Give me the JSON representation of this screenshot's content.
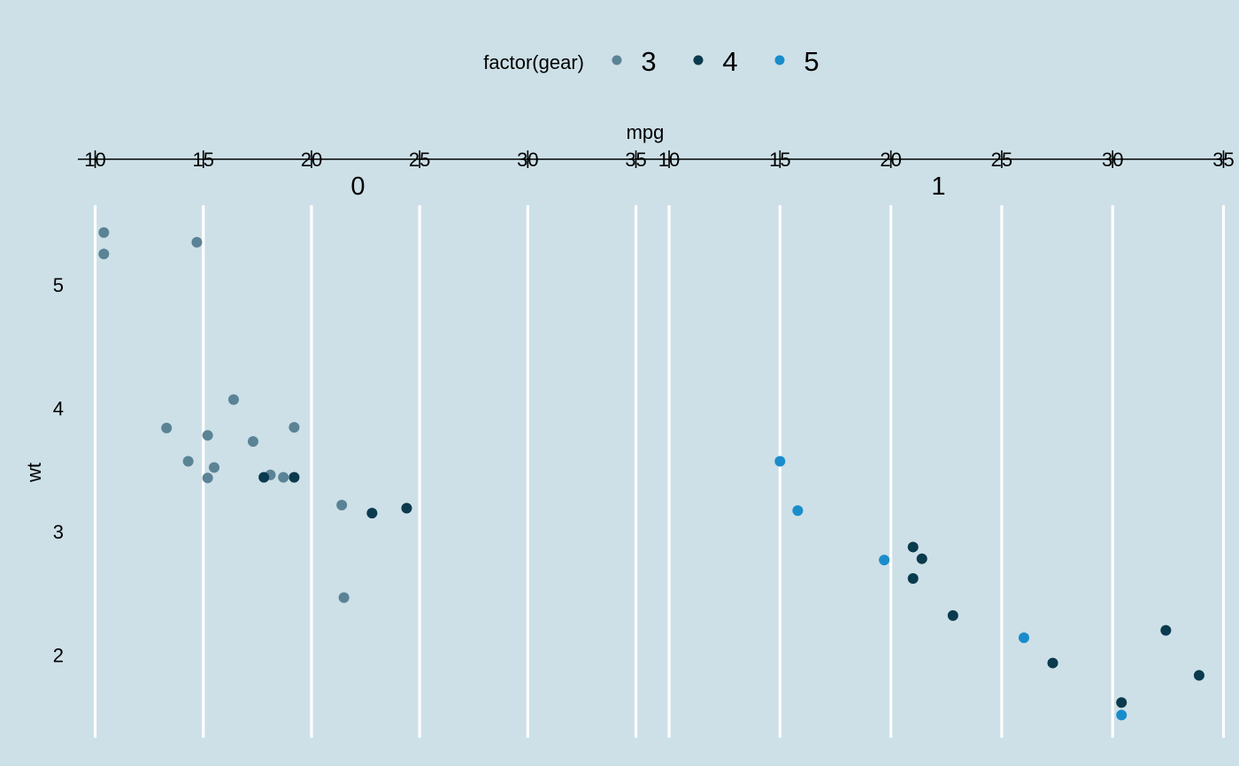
{
  "chart_data": {
    "type": "scatter",
    "xlabel": "mpg",
    "ylabel": "wt",
    "xlim": [
      9.2,
      35.1
    ],
    "ylim": [
      1.4,
      5.54
    ],
    "x_ticks": [
      10,
      15,
      20,
      25,
      30,
      35
    ],
    "y_ticks": [
      2,
      3,
      4,
      5
    ],
    "grid": "vertical-major-only",
    "legend": {
      "title": "factor(gear)",
      "placement": "top",
      "entries": [
        {
          "label": "3",
          "color": "#5b8396"
        },
        {
          "label": "4",
          "color": "#0a3a4d"
        },
        {
          "label": "5",
          "color": "#1a8ccc"
        }
      ]
    },
    "facets": [
      {
        "label": "0",
        "points": [
          {
            "x": 10.4,
            "y": 5.25,
            "gear": "3"
          },
          {
            "x": 10.4,
            "y": 5.424,
            "gear": "3"
          },
          {
            "x": 14.7,
            "y": 5.345,
            "gear": "3"
          },
          {
            "x": 13.3,
            "y": 3.84,
            "gear": "3"
          },
          {
            "x": 14.3,
            "y": 3.57,
            "gear": "3"
          },
          {
            "x": 15.2,
            "y": 3.78,
            "gear": "3"
          },
          {
            "x": 15.2,
            "y": 3.435,
            "gear": "3"
          },
          {
            "x": 15.5,
            "y": 3.52,
            "gear": "3"
          },
          {
            "x": 16.4,
            "y": 4.07,
            "gear": "3"
          },
          {
            "x": 17.3,
            "y": 3.73,
            "gear": "3"
          },
          {
            "x": 18.1,
            "y": 3.46,
            "gear": "3"
          },
          {
            "x": 18.7,
            "y": 3.44,
            "gear": "3"
          },
          {
            "x": 19.2,
            "y": 3.845,
            "gear": "3"
          },
          {
            "x": 21.4,
            "y": 3.215,
            "gear": "3"
          },
          {
            "x": 21.5,
            "y": 2.465,
            "gear": "3"
          },
          {
            "x": 17.8,
            "y": 3.44,
            "gear": "4"
          },
          {
            "x": 19.2,
            "y": 3.44,
            "gear": "4"
          },
          {
            "x": 22.8,
            "y": 3.15,
            "gear": "4"
          },
          {
            "x": 24.4,
            "y": 3.19,
            "gear": "4"
          }
        ]
      },
      {
        "label": "1",
        "points": [
          {
            "x": 15.0,
            "y": 3.57,
            "gear": "5"
          },
          {
            "x": 15.8,
            "y": 3.17,
            "gear": "5"
          },
          {
            "x": 19.7,
            "y": 2.77,
            "gear": "5"
          },
          {
            "x": 26.0,
            "y": 2.14,
            "gear": "5"
          },
          {
            "x": 30.4,
            "y": 1.513,
            "gear": "5"
          },
          {
            "x": 21.0,
            "y": 2.875,
            "gear": "4"
          },
          {
            "x": 21.4,
            "y": 2.78,
            "gear": "4"
          },
          {
            "x": 21.0,
            "y": 2.62,
            "gear": "4"
          },
          {
            "x": 22.8,
            "y": 2.32,
            "gear": "4"
          },
          {
            "x": 32.4,
            "y": 2.2,
            "gear": "4"
          },
          {
            "x": 27.3,
            "y": 1.935,
            "gear": "4"
          },
          {
            "x": 33.9,
            "y": 1.835,
            "gear": "4"
          },
          {
            "x": 30.4,
            "y": 1.615,
            "gear": "4"
          }
        ]
      }
    ]
  }
}
